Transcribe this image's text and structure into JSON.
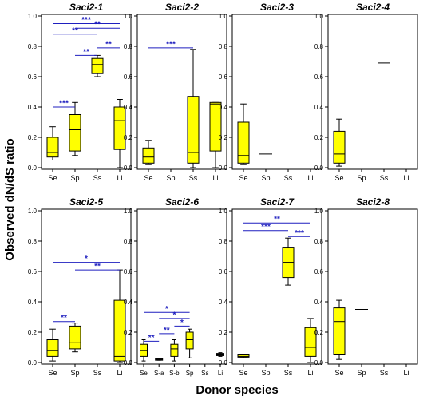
{
  "figure": {
    "ylabel": "Observed dN/dS ratio",
    "xlabel": "Donor species"
  },
  "colors": {
    "box_fill": "#ffff00",
    "box_stroke": "#000000",
    "bracket": "#1f1fbf",
    "star": "#1f1fbf",
    "axis": "#000000",
    "series_S-a": "#333333",
    "series_Li_Saci2-6": "#9a9a3a"
  },
  "chart_data": [
    {
      "title": "Saci2-1",
      "type": "box",
      "categories": [
        "Se",
        "Sp",
        "Ss",
        "Li"
      ],
      "ylim": [
        0,
        1.0
      ],
      "yticks": [
        "0.0",
        "0.2",
        "0.4",
        "0.6",
        "0.8",
        "1.0"
      ],
      "series": [
        {
          "category": "Se",
          "whisker_low": 0.05,
          "q1": 0.07,
          "median": 0.1,
          "q3": 0.2,
          "whisker_high": 0.27
        },
        {
          "category": "Sp",
          "whisker_low": 0.08,
          "q1": 0.11,
          "median": 0.25,
          "q3": 0.35,
          "whisker_high": 0.43
        },
        {
          "category": "Ss",
          "whisker_low": 0.6,
          "q1": 0.62,
          "median": 0.68,
          "q3": 0.72,
          "whisker_high": 0.74
        },
        {
          "category": "Li",
          "whisker_low": 0.0,
          "q1": 0.12,
          "median": 0.31,
          "q3": 0.4,
          "whisker_high": 0.45
        }
      ],
      "significance": [
        {
          "from": "Se",
          "to": "Li",
          "y": 0.95,
          "label": "***"
        },
        {
          "from": "Se",
          "to": "Ss",
          "y": 0.88,
          "label": "**"
        },
        {
          "from": "Sp",
          "to": "Li",
          "y": 0.92,
          "label": "**"
        },
        {
          "from": "Ss",
          "to": "Li",
          "y": 0.79,
          "label": "**"
        },
        {
          "from": "Sp",
          "to": "Ss",
          "y": 0.74,
          "label": "**"
        },
        {
          "from": "Se",
          "to": "Sp",
          "y": 0.4,
          "label": "***"
        }
      ]
    },
    {
      "title": "Saci2-2",
      "type": "box",
      "categories": [
        "Se",
        "Sp",
        "Ss",
        "Li"
      ],
      "ylim": [
        0,
        1.0
      ],
      "yticks": [
        "0.0",
        "0.2",
        "0.4",
        "0.6",
        "0.8",
        "1.0"
      ],
      "series": [
        {
          "category": "Se",
          "whisker_low": 0.02,
          "q1": 0.03,
          "median": 0.07,
          "q3": 0.13,
          "whisker_high": 0.18
        },
        {
          "category": "Ss",
          "whisker_low": 0.0,
          "q1": 0.03,
          "median": 0.1,
          "q3": 0.47,
          "whisker_high": 0.78
        },
        {
          "category": "Li",
          "whisker_low": 0.0,
          "q1": 0.11,
          "median": 0.42,
          "q3": 0.43,
          "whisker_high": 0.43
        }
      ],
      "significance": [
        {
          "from": "Se",
          "to": "Ss",
          "y": 0.79,
          "label": "***"
        }
      ]
    },
    {
      "title": "Saci2-3",
      "type": "box",
      "categories": [
        "Se",
        "Sp",
        "Ss",
        "Li"
      ],
      "ylim": [
        0,
        1.0
      ],
      "yticks": [
        "0.0",
        "0.2",
        "0.4",
        "0.6",
        "0.8",
        "1.0"
      ],
      "series": [
        {
          "category": "Se",
          "whisker_low": 0.02,
          "q1": 0.03,
          "median": 0.08,
          "q3": 0.3,
          "whisker_high": 0.42
        },
        {
          "category": "Sp",
          "whisker_low": 0.09,
          "q1": 0.09,
          "median": 0.09,
          "q3": 0.09,
          "whisker_high": 0.09
        }
      ],
      "significance": []
    },
    {
      "title": "Saci2-4",
      "type": "box",
      "categories": [
        "Se",
        "Sp",
        "Ss",
        "Li"
      ],
      "ylim": [
        0,
        1.0
      ],
      "yticks": [
        "0.0",
        "0.2",
        "0.4",
        "0.6",
        "0.8",
        "1.0"
      ],
      "series": [
        {
          "category": "Se",
          "whisker_low": 0.01,
          "q1": 0.03,
          "median": 0.09,
          "q3": 0.24,
          "whisker_high": 0.32
        },
        {
          "category": "Ss",
          "whisker_low": 0.69,
          "q1": 0.69,
          "median": 0.69,
          "q3": 0.69,
          "whisker_high": 0.69
        }
      ],
      "significance": []
    },
    {
      "title": "Saci2-5",
      "type": "box",
      "categories": [
        "Se",
        "Sp",
        "Ss",
        "Li"
      ],
      "ylim": [
        0,
        1.0
      ],
      "yticks": [
        "0.0",
        "0.2",
        "0.4",
        "0.6",
        "0.8",
        "1.0"
      ],
      "series": [
        {
          "category": "Se",
          "whisker_low": 0.01,
          "q1": 0.04,
          "median": 0.08,
          "q3": 0.15,
          "whisker_high": 0.22
        },
        {
          "category": "Sp",
          "whisker_low": 0.07,
          "q1": 0.09,
          "median": 0.13,
          "q3": 0.24,
          "whisker_high": 0.26
        },
        {
          "category": "Li",
          "whisker_low": 0.0,
          "q1": 0.01,
          "median": 0.04,
          "q3": 0.41,
          "whisker_high": 0.61
        }
      ],
      "significance": [
        {
          "from": "Se",
          "to": "Li",
          "y": 0.66,
          "label": "*"
        },
        {
          "from": "Sp",
          "to": "Li",
          "y": 0.61,
          "label": "**"
        },
        {
          "from": "Se",
          "to": "Sp",
          "y": 0.27,
          "label": "**"
        }
      ]
    },
    {
      "title": "Saci2-6",
      "type": "box",
      "categories": [
        "Se",
        "S-a",
        "S-b",
        "Sp",
        "Ss",
        "Li"
      ],
      "ylim": [
        0,
        1.0
      ],
      "yticks": [
        "0.0",
        "0.2",
        "0.4",
        "0.6",
        "0.8",
        "1.0"
      ],
      "series": [
        {
          "category": "Se",
          "whisker_low": 0.01,
          "q1": 0.04,
          "median": 0.08,
          "q3": 0.12,
          "whisker_high": 0.15
        },
        {
          "category": "S-a",
          "whisker_low": 0.015,
          "q1": 0.015,
          "median": 0.02,
          "q3": 0.025,
          "whisker_high": 0.025
        },
        {
          "category": "S-b",
          "whisker_low": 0.01,
          "q1": 0.04,
          "median": 0.09,
          "q3": 0.12,
          "whisker_high": 0.15
        },
        {
          "category": "Sp",
          "whisker_low": 0.03,
          "q1": 0.09,
          "median": 0.15,
          "q3": 0.2,
          "whisker_high": 0.22
        },
        {
          "category": "Li",
          "whisker_low": 0.04,
          "q1": 0.045,
          "median": 0.05,
          "q3": 0.06,
          "whisker_high": 0.065
        }
      ],
      "significance": [
        {
          "from": "Se",
          "to": "Sp",
          "y": 0.33,
          "label": "*"
        },
        {
          "from": "S-a",
          "to": "Sp",
          "y": 0.29,
          "label": "*"
        },
        {
          "from": "S-b",
          "to": "Sp",
          "y": 0.24,
          "label": "*"
        },
        {
          "from": "S-a",
          "to": "S-b",
          "y": 0.19,
          "label": "**"
        },
        {
          "from": "Se",
          "to": "S-a",
          "y": 0.14,
          "label": "**"
        }
      ]
    },
    {
      "title": "Saci2-7",
      "type": "box",
      "categories": [
        "Se",
        "Sp",
        "Ss",
        "Li"
      ],
      "ylim": [
        0,
        1.0
      ],
      "yticks": [
        "0.0",
        "0.2",
        "0.4",
        "0.6",
        "0.8",
        "1.0"
      ],
      "series": [
        {
          "category": "Se",
          "whisker_low": 0.03,
          "q1": 0.035,
          "median": 0.04,
          "q3": 0.05,
          "whisker_high": 0.05
        },
        {
          "category": "Ss",
          "whisker_low": 0.51,
          "q1": 0.56,
          "median": 0.66,
          "q3": 0.76,
          "whisker_high": 0.82
        },
        {
          "category": "Li",
          "whisker_low": 0.0,
          "q1": 0.04,
          "median": 0.1,
          "q3": 0.23,
          "whisker_high": 0.29
        }
      ],
      "significance": [
        {
          "from": "Se",
          "to": "Li",
          "y": 0.92,
          "label": "**"
        },
        {
          "from": "Se",
          "to": "Ss",
          "y": 0.87,
          "label": "***"
        },
        {
          "from": "Ss",
          "to": "Li",
          "y": 0.83,
          "label": "***"
        }
      ]
    },
    {
      "title": "Saci2-8",
      "type": "box",
      "categories": [
        "Se",
        "Sp",
        "Ss",
        "Li"
      ],
      "ylim": [
        0,
        1.0
      ],
      "yticks": [
        "0.0",
        "0.2",
        "0.4",
        "0.6",
        "0.8",
        "1.0"
      ],
      "series": [
        {
          "category": "Se",
          "whisker_low": 0.02,
          "q1": 0.05,
          "median": 0.27,
          "q3": 0.36,
          "whisker_high": 0.41
        },
        {
          "category": "Sp",
          "whisker_low": 0.35,
          "q1": 0.35,
          "median": 0.35,
          "q3": 0.35,
          "whisker_high": 0.35
        }
      ],
      "significance": []
    }
  ]
}
